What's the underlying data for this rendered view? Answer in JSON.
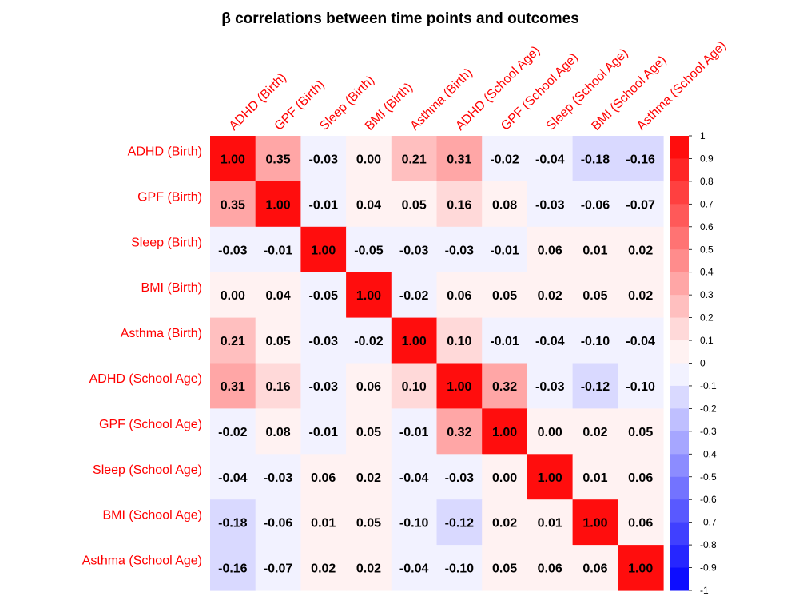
{
  "chart_data": {
    "type": "heatmap",
    "title": "β correlations between time points and outcomes",
    "row_labels": [
      "ADHD (Birth)",
      "GPF (Birth)",
      "Sleep (Birth)",
      "BMI (Birth)",
      "Asthma (Birth)",
      "ADHD (School Age)",
      "GPF (School Age)",
      "Sleep (School Age)",
      "BMI (School Age)",
      "Asthma (School Age)"
    ],
    "col_labels": [
      "ADHD (Birth)",
      "GPF (Birth)",
      "Sleep (Birth)",
      "BMI (Birth)",
      "Asthma (Birth)",
      "ADHD (School Age)",
      "GPF (School Age)",
      "Sleep (School Age)",
      "BMI (School Age)",
      "Asthma (School Age)"
    ],
    "values": [
      [
        1.0,
        0.35,
        -0.03,
        0.0,
        0.21,
        0.31,
        -0.02,
        -0.04,
        -0.18,
        -0.16
      ],
      [
        0.35,
        1.0,
        -0.01,
        0.04,
        0.05,
        0.16,
        0.08,
        -0.03,
        -0.06,
        -0.07
      ],
      [
        -0.03,
        -0.01,
        1.0,
        -0.05,
        -0.03,
        -0.03,
        -0.01,
        0.06,
        0.01,
        0.02
      ],
      [
        0.0,
        0.04,
        -0.05,
        1.0,
        -0.02,
        0.06,
        0.05,
        0.02,
        0.05,
        0.02
      ],
      [
        0.21,
        0.05,
        -0.03,
        -0.02,
        1.0,
        0.1,
        -0.01,
        -0.04,
        -0.1,
        -0.04
      ],
      [
        0.31,
        0.16,
        -0.03,
        0.06,
        0.1,
        1.0,
        0.32,
        -0.03,
        -0.12,
        -0.1
      ],
      [
        -0.02,
        0.08,
        -0.01,
        0.05,
        -0.01,
        0.32,
        1.0,
        0.0,
        0.02,
        0.05
      ],
      [
        -0.04,
        -0.03,
        0.06,
        0.02,
        -0.04,
        -0.03,
        0.0,
        1.0,
        0.01,
        0.06
      ],
      [
        -0.18,
        -0.06,
        0.01,
        0.05,
        -0.1,
        -0.12,
        0.02,
        0.01,
        1.0,
        0.06
      ],
      [
        -0.16,
        -0.07,
        0.02,
        0.02,
        -0.04,
        -0.1,
        0.05,
        0.06,
        0.06,
        1.0
      ]
    ],
    "value_format": "2 decimals",
    "color_scale": {
      "range": [
        -1,
        1
      ],
      "low_color": "#0000ff",
      "mid_color": "#ffffff",
      "high_color": "#ff0000",
      "steps": 20
    },
    "legend_ticks": [
      "1",
      "0.9",
      "0.8",
      "0.7",
      "0.6",
      "0.5",
      "0.4",
      "0.3",
      "0.2",
      "0.1",
      "0",
      "-0.1",
      "-0.2",
      "-0.3",
      "-0.4",
      "-0.5",
      "-0.6",
      "-0.7",
      "-0.8",
      "-0.9",
      "-1"
    ],
    "label_color": "#ff0000",
    "legend_placement": "right"
  }
}
